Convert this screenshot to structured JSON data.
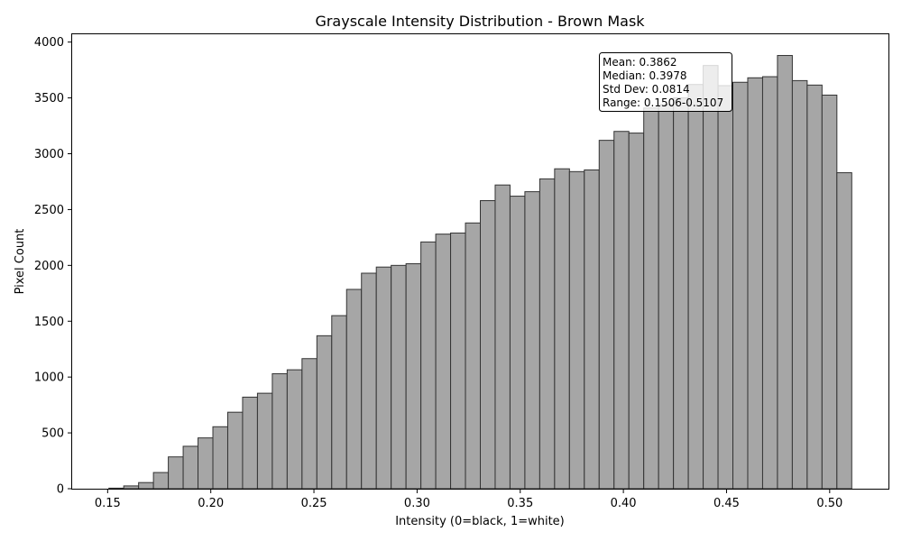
{
  "chart_data": {
    "type": "bar",
    "title": "Grayscale Intensity Distribution - Brown Mask",
    "xlabel": "Intensity (0=black, 1=white)",
    "ylabel": "Pixel Count",
    "xlim": [
      0.1328,
      0.5285
    ],
    "ylim": [
      0,
      4070
    ],
    "xticks": [
      "0.15",
      "0.20",
      "0.25",
      "0.30",
      "0.35",
      "0.40",
      "0.45",
      "0.50"
    ],
    "yticks": [
      "0",
      "500",
      "1000",
      "1500",
      "2000",
      "2500",
      "3000",
      "3500",
      "4000"
    ],
    "bin_range": [
      0.1506,
      0.5107
    ],
    "bar_color": "#a6a6a6",
    "edge_color": "#333333",
    "grid": false,
    "values": [
      5,
      25,
      55,
      145,
      285,
      380,
      455,
      555,
      685,
      820,
      855,
      1030,
      1065,
      1165,
      1370,
      1550,
      1785,
      1930,
      1985,
      2000,
      2015,
      2210,
      2280,
      2290,
      2380,
      2580,
      2720,
      2620,
      2660,
      2775,
      2865,
      2840,
      2855,
      3120,
      3200,
      3185,
      3410,
      3440,
      3500,
      3620,
      3790,
      3610,
      3640,
      3680,
      3690,
      3880,
      3655,
      3615,
      3525,
      2830
    ],
    "stats_box": {
      "position": "top-right",
      "lines": [
        "Mean: 0.3862",
        "Median: 0.3978",
        "Std Dev: 0.0814",
        "Range: 0.1506-0.5107"
      ]
    }
  }
}
